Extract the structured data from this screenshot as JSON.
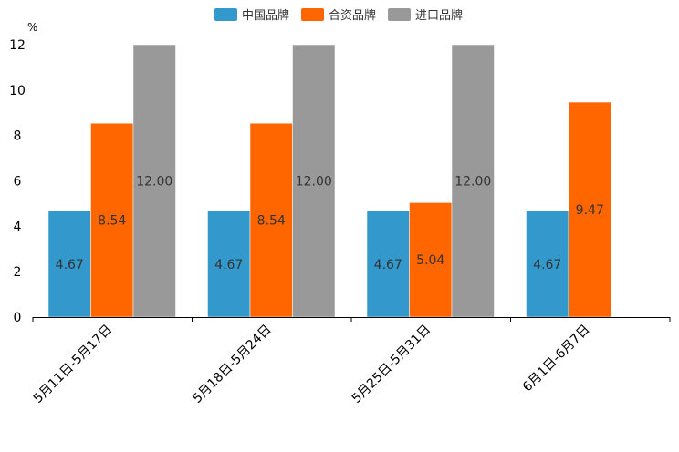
{
  "chart_data": {
    "type": "bar",
    "unit": "%",
    "categories": [
      "5月11日-5月17日",
      "5月18日-5月24日",
      "5月25日-5月31日",
      "6月1日-6月7日"
    ],
    "series": [
      {
        "name": "中国品牌",
        "color": "#3399cc",
        "values": [
          4.67,
          4.67,
          4.67,
          4.67
        ],
        "labels": [
          "4.67",
          "4.67",
          "4.67",
          "4.67"
        ]
      },
      {
        "name": "合资品牌",
        "color": "#ff6600",
        "values": [
          8.54,
          8.54,
          5.04,
          9.47
        ],
        "labels": [
          "8.54",
          "8.54",
          "5.04",
          "9.47"
        ]
      },
      {
        "name": "进口品牌",
        "color": "#999999",
        "values": [
          12.0,
          12.0,
          12.0,
          null
        ],
        "labels": [
          "12.00",
          "12.00",
          "12.00",
          null
        ]
      }
    ],
    "ylim": [
      0,
      12
    ],
    "yticks": [
      "0",
      "2",
      "4",
      "6",
      "8",
      "10",
      "12"
    ],
    "legend_position": "top-center",
    "grid": false
  }
}
